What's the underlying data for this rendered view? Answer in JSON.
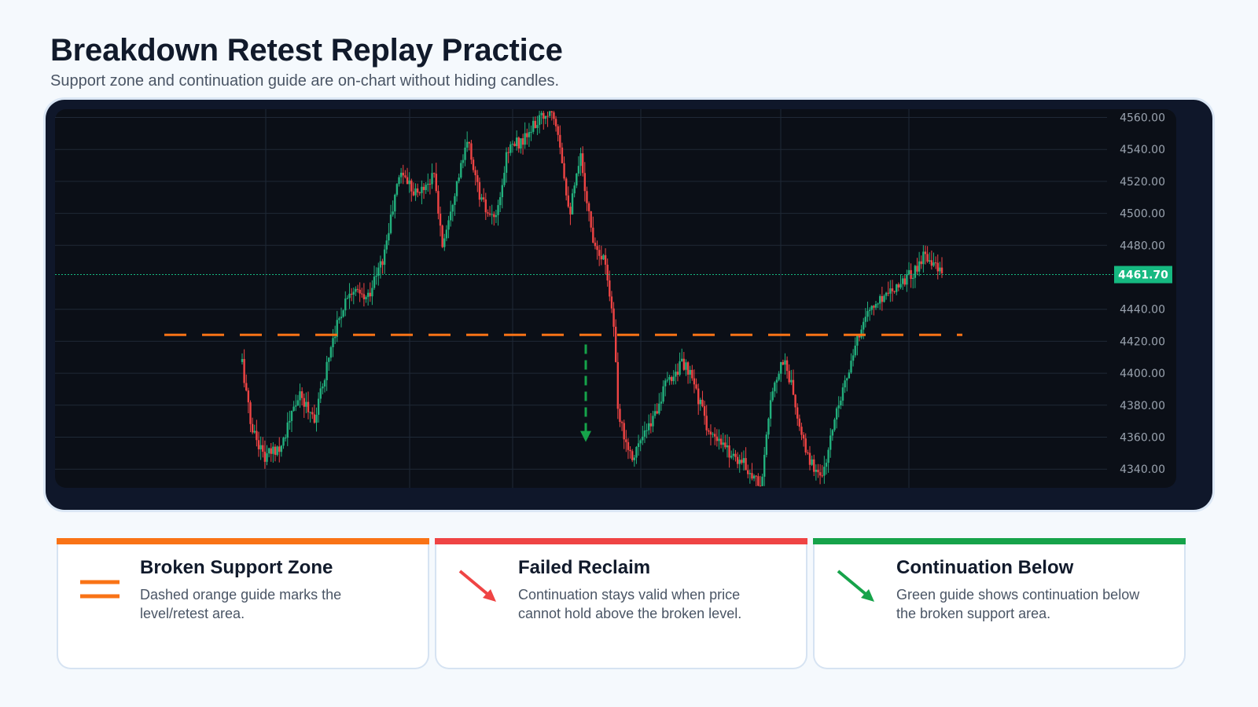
{
  "header": {
    "title": "Breakdown Retest Replay Practice",
    "subtitle": "Support zone and continuation guide are on-chart without hiding candles."
  },
  "chart_data": {
    "type": "candlestick",
    "y_ticks": [
      "4560.00",
      "4540.00",
      "4520.00",
      "4500.00",
      "4480.00",
      "4440.00",
      "4420.00",
      "4400.00",
      "4380.00",
      "4360.00",
      "4340.00"
    ],
    "ylim": [
      4330,
      4565
    ],
    "last_price": 4461.7,
    "last_price_label": "4461.70",
    "support_level": 4424,
    "continuation_guide": {
      "from": 4418,
      "to": 4358
    },
    "grid": true,
    "colors": {
      "up": "#22b07d",
      "down": "#ef4444",
      "support": "#f97316",
      "guide": "#16a34a",
      "price_tag": "#16b981",
      "background": "#0b0f17",
      "grid": "#1f2937",
      "tick_text": "#9aa3af"
    },
    "price_path": [
      [
        0,
        4407
      ],
      [
        0.015,
        4368
      ],
      [
        0.04,
        4347
      ],
      [
        0.07,
        4356
      ],
      [
        0.1,
        4386
      ],
      [
        0.13,
        4372
      ],
      [
        0.16,
        4422
      ],
      [
        0.19,
        4453
      ],
      [
        0.22,
        4446
      ],
      [
        0.25,
        4472
      ],
      [
        0.28,
        4527
      ],
      [
        0.31,
        4512
      ],
      [
        0.34,
        4524
      ],
      [
        0.355,
        4480
      ],
      [
        0.37,
        4505
      ],
      [
        0.4,
        4545
      ],
      [
        0.42,
        4512
      ],
      [
        0.44,
        4495
      ],
      [
        0.455,
        4502
      ],
      [
        0.47,
        4541
      ],
      [
        0.5,
        4546
      ],
      [
        0.52,
        4556
      ],
      [
        0.55,
        4566
      ],
      [
        0.56,
        4552
      ],
      [
        0.58,
        4500
      ],
      [
        0.6,
        4535
      ],
      [
        0.62,
        4486
      ],
      [
        0.645,
        4468
      ],
      [
        0.66,
        4425
      ],
      [
        0.665,
        4375
      ],
      [
        0.69,
        4348
      ],
      [
        0.72,
        4365
      ],
      [
        0.75,
        4392
      ],
      [
        0.78,
        4407
      ],
      [
        0.8,
        4394
      ],
      [
        0.83,
        4360
      ],
      [
        0.86,
        4352
      ],
      [
        0.89,
        4343
      ],
      [
        0.905,
        4336
      ],
      [
        0.92,
        4330
      ],
      [
        0.94,
        4392
      ],
      [
        0.96,
        4409
      ],
      [
        0.975,
        4390
      ],
      [
        0.99,
        4360
      ],
      [
        1.01,
        4342
      ],
      [
        1.03,
        4336
      ],
      [
        1.055,
        4381
      ],
      [
        1.08,
        4406
      ],
      [
        1.1,
        4434
      ],
      [
        1.12,
        4442
      ],
      [
        1.145,
        4452
      ],
      [
        1.17,
        4458
      ],
      [
        1.19,
        4463
      ],
      [
        1.21,
        4475
      ],
      [
        1.225,
        4470
      ],
      [
        1.24,
        4460
      ]
    ]
  },
  "legend": [
    {
      "title": "Broken Support Zone",
      "desc": "Dashed orange guide marks the level/retest area.",
      "accent": "#f97316",
      "icon": "dashed-lines-icon"
    },
    {
      "title": "Failed Reclaim",
      "desc": "Continuation stays valid when price cannot hold above the broken level.",
      "accent": "#ef4444",
      "icon": "red-arrow-down-right-icon"
    },
    {
      "title": "Continuation Below",
      "desc": "Green guide shows continuation below the broken support area.",
      "accent": "#16a34a",
      "icon": "green-arrow-down-right-icon"
    }
  ]
}
